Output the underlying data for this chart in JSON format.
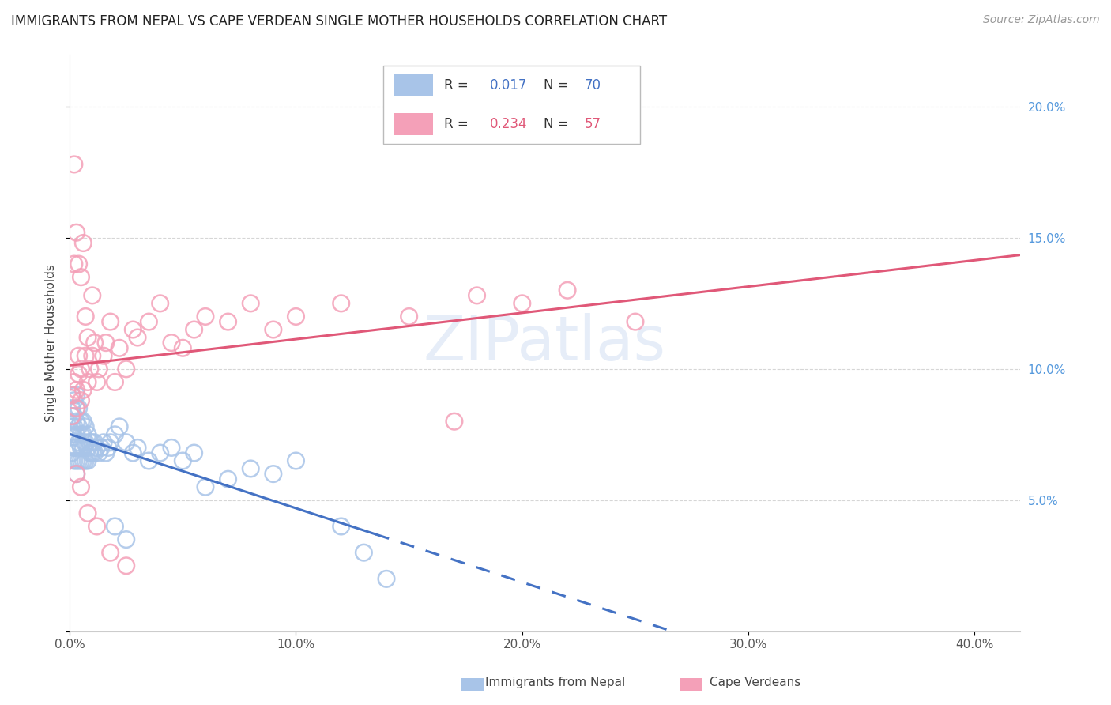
{
  "title": "IMMIGRANTS FROM NEPAL VS CAPE VERDEAN SINGLE MOTHER HOUSEHOLDS CORRELATION CHART",
  "source": "Source: ZipAtlas.com",
  "ylabel": "Single Mother Households",
  "ylim": [
    0.0,
    0.22
  ],
  "xlim": [
    0.0,
    0.42
  ],
  "legend_nepal_r": "0.017",
  "legend_nepal_n": "70",
  "legend_cape_r": "0.234",
  "legend_cape_n": "57",
  "nepal_color": "#a8c4e8",
  "cape_color": "#f4a0b8",
  "nepal_line_color": "#4472c4",
  "cape_line_color": "#e05878",
  "watermark": "ZIPatlas",
  "nepal_x": [
    0.001,
    0.001,
    0.001,
    0.001,
    0.001,
    0.001,
    0.002,
    0.002,
    0.002,
    0.002,
    0.002,
    0.002,
    0.003,
    0.003,
    0.003,
    0.003,
    0.003,
    0.003,
    0.003,
    0.004,
    0.004,
    0.004,
    0.004,
    0.005,
    0.005,
    0.005,
    0.005,
    0.006,
    0.006,
    0.006,
    0.006,
    0.007,
    0.007,
    0.007,
    0.008,
    0.008,
    0.008,
    0.009,
    0.009,
    0.01,
    0.01,
    0.011,
    0.011,
    0.012,
    0.013,
    0.014,
    0.015,
    0.016,
    0.017,
    0.018,
    0.02,
    0.022,
    0.025,
    0.028,
    0.03,
    0.035,
    0.04,
    0.045,
    0.05,
    0.055,
    0.06,
    0.07,
    0.08,
    0.09,
    0.1,
    0.12,
    0.13,
    0.14,
    0.02,
    0.025
  ],
  "nepal_y": [
    0.085,
    0.09,
    0.082,
    0.078,
    0.075,
    0.068,
    0.088,
    0.082,
    0.078,
    0.074,
    0.07,
    0.065,
    0.09,
    0.085,
    0.08,
    0.075,
    0.07,
    0.065,
    0.06,
    0.085,
    0.078,
    0.072,
    0.065,
    0.08,
    0.075,
    0.07,
    0.065,
    0.08,
    0.075,
    0.07,
    0.065,
    0.078,
    0.072,
    0.065,
    0.075,
    0.07,
    0.065,
    0.072,
    0.068,
    0.072,
    0.068,
    0.072,
    0.068,
    0.07,
    0.068,
    0.07,
    0.072,
    0.068,
    0.07,
    0.072,
    0.075,
    0.078,
    0.072,
    0.068,
    0.07,
    0.065,
    0.068,
    0.07,
    0.065,
    0.068,
    0.055,
    0.058,
    0.062,
    0.06,
    0.065,
    0.04,
    0.03,
    0.02,
    0.04,
    0.035
  ],
  "cape_x": [
    0.001,
    0.001,
    0.002,
    0.002,
    0.002,
    0.003,
    0.003,
    0.003,
    0.004,
    0.004,
    0.004,
    0.005,
    0.005,
    0.005,
    0.006,
    0.006,
    0.007,
    0.007,
    0.008,
    0.008,
    0.009,
    0.01,
    0.01,
    0.011,
    0.012,
    0.013,
    0.015,
    0.016,
    0.018,
    0.02,
    0.022,
    0.025,
    0.028,
    0.03,
    0.035,
    0.04,
    0.045,
    0.05,
    0.055,
    0.06,
    0.07,
    0.08,
    0.09,
    0.1,
    0.12,
    0.15,
    0.18,
    0.2,
    0.22,
    0.25,
    0.003,
    0.005,
    0.008,
    0.012,
    0.018,
    0.025,
    0.17
  ],
  "cape_y": [
    0.09,
    0.082,
    0.14,
    0.178,
    0.095,
    0.085,
    0.152,
    0.092,
    0.14,
    0.098,
    0.105,
    0.088,
    0.135,
    0.1,
    0.148,
    0.092,
    0.105,
    0.12,
    0.095,
    0.112,
    0.1,
    0.128,
    0.105,
    0.11,
    0.095,
    0.1,
    0.105,
    0.11,
    0.118,
    0.095,
    0.108,
    0.1,
    0.115,
    0.112,
    0.118,
    0.125,
    0.11,
    0.108,
    0.115,
    0.12,
    0.118,
    0.125,
    0.115,
    0.12,
    0.125,
    0.12,
    0.128,
    0.125,
    0.13,
    0.118,
    0.06,
    0.055,
    0.045,
    0.04,
    0.03,
    0.025,
    0.08
  ]
}
